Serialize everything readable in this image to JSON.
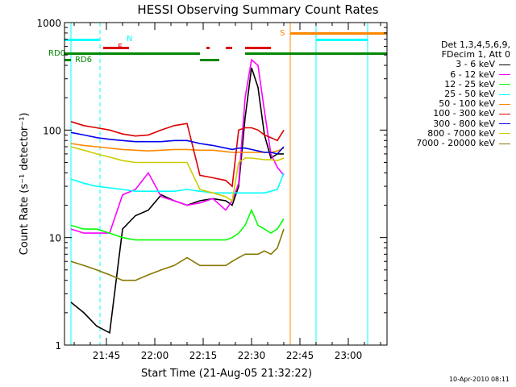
{
  "title": "HESSI Observing Summary Count Rates",
  "legend": {
    "header_line1": "Det 1,3,4,5,6,9,",
    "header_line2": "FDecim 1, Att 0"
  },
  "footer": "10-Apr-2010 08:11",
  "chart_data": {
    "type": "line",
    "title": "HESSI Observing Summary Count Rates",
    "xlabel": "Start Time (21-Aug-05 21:32:22)",
    "ylabel": "Count Rate (s⁻¹ detector⁻¹)",
    "yscale": "log",
    "ylim": [
      1,
      1000
    ],
    "xlim": [
      "21:32",
      "23:12"
    ],
    "x_ticks": [
      "21:45",
      "22:00",
      "22:15",
      "22:30",
      "22:45",
      "23:00"
    ],
    "y_ticks": [
      "1",
      "10",
      "100",
      "1000"
    ],
    "x": [
      "21:34",
      "21:38",
      "21:42",
      "21:46",
      "21:50",
      "21:54",
      "21:58",
      "22:02",
      "22:06",
      "22:10",
      "22:14",
      "22:18",
      "22:22",
      "22:24",
      "22:26",
      "22:28",
      "22:30",
      "22:32",
      "22:34",
      "22:36",
      "22:38",
      "22:40"
    ],
    "series": [
      {
        "name": "3 - 6 keV",
        "color": "#000000",
        "values": [
          2.5,
          2.0,
          1.5,
          1.3,
          12,
          16,
          18,
          25,
          22,
          20,
          22,
          23,
          22,
          20,
          30,
          130,
          380,
          250,
          90,
          55,
          60,
          60
        ]
      },
      {
        "name": "6 - 12 keV",
        "color": "#ff00ff",
        "values": [
          12,
          11,
          11,
          11,
          25,
          28,
          40,
          24,
          22,
          20,
          21,
          23,
          18,
          22,
          32,
          200,
          450,
          400,
          150,
          60,
          45,
          38
        ]
      },
      {
        "name": "12 - 25 keV",
        "color": "#00ff00",
        "values": [
          13,
          12,
          12,
          11,
          10,
          9.5,
          9.5,
          9.5,
          9.5,
          9.5,
          9.5,
          9.5,
          9.5,
          10,
          11,
          13,
          18,
          13,
          12,
          11,
          12,
          15
        ]
      },
      {
        "name": "25 - 50 keV",
        "color": "#00ffff",
        "values": [
          35,
          32,
          30,
          29,
          28,
          27,
          27,
          27,
          27,
          28,
          27,
          26,
          26,
          26,
          26,
          26,
          26,
          26,
          26,
          27,
          28,
          40
        ]
      },
      {
        "name": "50 - 100 keV",
        "color": "#ff8800",
        "values": [
          75,
          72,
          70,
          68,
          66,
          65,
          64,
          65,
          66,
          66,
          65,
          65,
          63,
          62,
          62,
          62,
          62,
          62,
          62,
          62,
          64,
          68
        ]
      },
      {
        "name": "100 - 300 keV",
        "color": "#dd0000",
        "values": [
          120,
          110,
          105,
          100,
          92,
          88,
          90,
          100,
          110,
          115,
          38,
          36,
          34,
          30,
          100,
          105,
          105,
          100,
          90,
          85,
          80,
          100
        ]
      },
      {
        "name": "300 - 800 keV",
        "color": "#0000ee",
        "values": [
          95,
          90,
          85,
          82,
          80,
          78,
          78,
          78,
          80,
          80,
          75,
          72,
          68,
          66,
          68,
          68,
          66,
          64,
          62,
          62,
          60,
          70
        ]
      },
      {
        "name": "800 - 7000 keV",
        "color": "#cccc00",
        "values": [
          70,
          65,
          60,
          56,
          52,
          50,
          50,
          50,
          50,
          50,
          28,
          26,
          24,
          22,
          50,
          55,
          55,
          54,
          53,
          53,
          52,
          55
        ]
      },
      {
        "name": "7000 - 20000 keV",
        "color": "#887700",
        "values": [
          6,
          5.5,
          5,
          4.5,
          4,
          4,
          4.5,
          5,
          5.5,
          6.5,
          5.5,
          5.5,
          5.5,
          6,
          6.5,
          7,
          7,
          7,
          7.5,
          7,
          8,
          12
        ]
      }
    ],
    "annotations": {
      "flags": [
        {
          "label": "N",
          "color": "#00ffff"
        },
        {
          "label": "F",
          "color": "#dd0000"
        },
        {
          "label": "S",
          "color": "#ff8800"
        },
        {
          "label": "RD0",
          "color": "#008800"
        },
        {
          "label": "RD6",
          "color": "#008800"
        }
      ]
    },
    "vertical_markers": [
      {
        "time": "21:34",
        "color": "#00ffff",
        "style": "solid"
      },
      {
        "time": "21:43",
        "color": "#00ffff",
        "style": "dashed"
      },
      {
        "time": "22:42",
        "color": "#ff8800",
        "style": "solid"
      },
      {
        "time": "22:50",
        "color": "#00ffff",
        "style": "solid"
      },
      {
        "time": "23:06",
        "color": "#00ffff",
        "style": "solid"
      }
    ]
  }
}
